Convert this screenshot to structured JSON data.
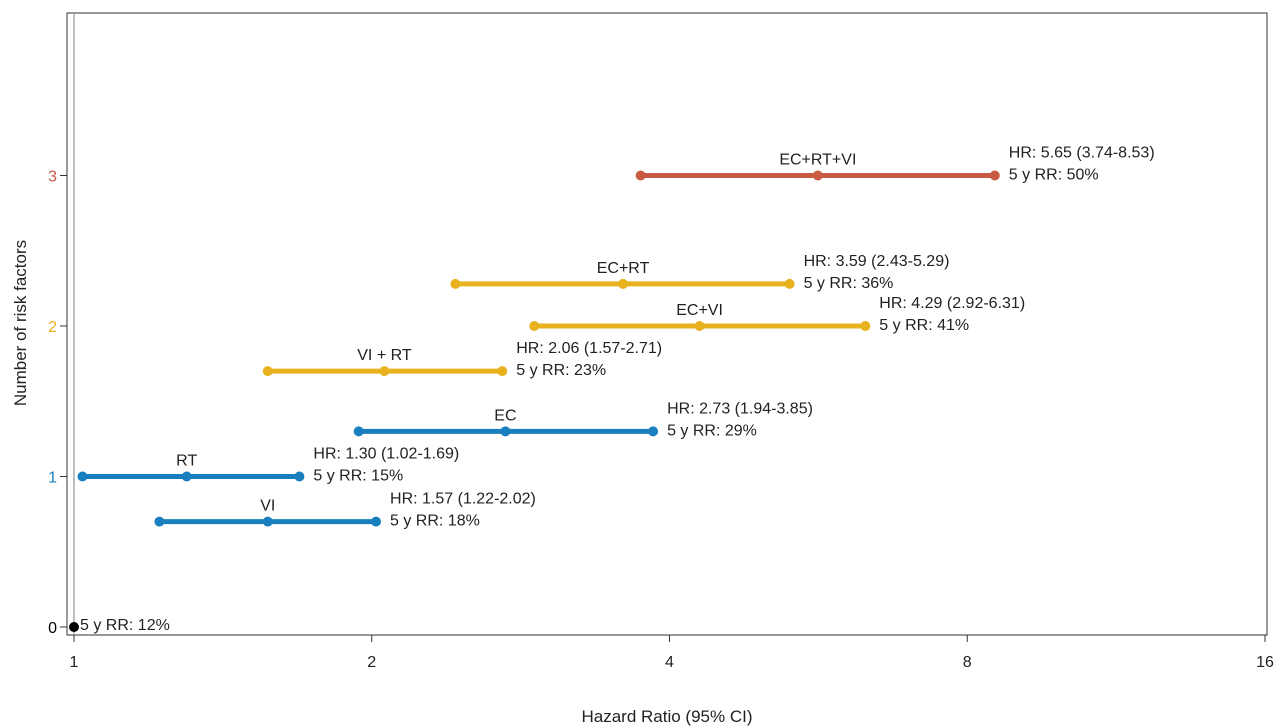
{
  "chart_data": {
    "type": "forest",
    "title": "",
    "xlabel": "Hazard Ratio (95% CI)",
    "ylabel": "Number of risk factors",
    "x_scale": "log2",
    "xlim": [
      1,
      16
    ],
    "ylim": [
      -0.05,
      4.1
    ],
    "grid": false,
    "legend": "none",
    "x_ticks": [
      {
        "value": 1,
        "label": "1"
      },
      {
        "value": 2,
        "label": "2"
      },
      {
        "value": 4,
        "label": "4"
      },
      {
        "value": 8,
        "label": "8"
      },
      {
        "value": 16,
        "label": "16"
      }
    ],
    "y_ticks": [
      {
        "value": 0,
        "label": "0",
        "color": "#000000"
      },
      {
        "value": 1,
        "label": "1",
        "color": "#1a7fbf"
      },
      {
        "value": 2,
        "label": "2",
        "color": "#e8b21e"
      },
      {
        "value": 3,
        "label": "3",
        "color": "#c95b43"
      }
    ],
    "reference": {
      "x": 1,
      "y": 0,
      "color": "#000000",
      "text": "5 y RR: 12%"
    },
    "series": [
      {
        "label": "RT",
        "y": 1.0,
        "hr": 1.3,
        "lo": 1.02,
        "hi": 1.69,
        "color": "#1a7fbf",
        "hr_text": "HR: 1.30 (1.02-1.69)",
        "rr_text": "5 y RR: 15%"
      },
      {
        "label": "VI",
        "y": 0.7,
        "hr": 1.57,
        "lo": 1.22,
        "hi": 2.02,
        "color": "#1a7fbf",
        "hr_text": "HR: 1.57 (1.22-2.02)",
        "rr_text": "5 y RR: 18%"
      },
      {
        "label": "EC",
        "y": 1.3,
        "hr": 2.73,
        "lo": 1.94,
        "hi": 3.85,
        "color": "#1a7fbf",
        "hr_text": "HR: 2.73 (1.94-3.85)",
        "rr_text": "5 y RR: 29%"
      },
      {
        "label": "VI + RT",
        "y": 1.7,
        "hr": 2.06,
        "lo": 1.57,
        "hi": 2.71,
        "color": "#e8b21e",
        "hr_text": "HR: 2.06 (1.57-2.71)",
        "rr_text": "5 y RR: 23%"
      },
      {
        "label": "EC+VI",
        "y": 2.0,
        "hr": 4.29,
        "lo": 2.92,
        "hi": 6.31,
        "color": "#e8b21e",
        "hr_text": "HR: 4.29 (2.92-6.31)",
        "rr_text": "5 y RR: 41%"
      },
      {
        "label": "EC+RT",
        "y": 2.28,
        "hr": 3.59,
        "lo": 2.43,
        "hi": 5.29,
        "color": "#e8b21e",
        "hr_text": "HR: 3.59 (2.43-5.29)",
        "rr_text": "5 y RR: 36%"
      },
      {
        "label": "EC+RT+VI",
        "y": 3.0,
        "hr": 5.65,
        "lo": 3.74,
        "hi": 8.53,
        "color": "#c95b43",
        "hr_text": "HR: 5.65 (3.74-8.53)",
        "rr_text": "5 y RR: 50%"
      }
    ]
  }
}
